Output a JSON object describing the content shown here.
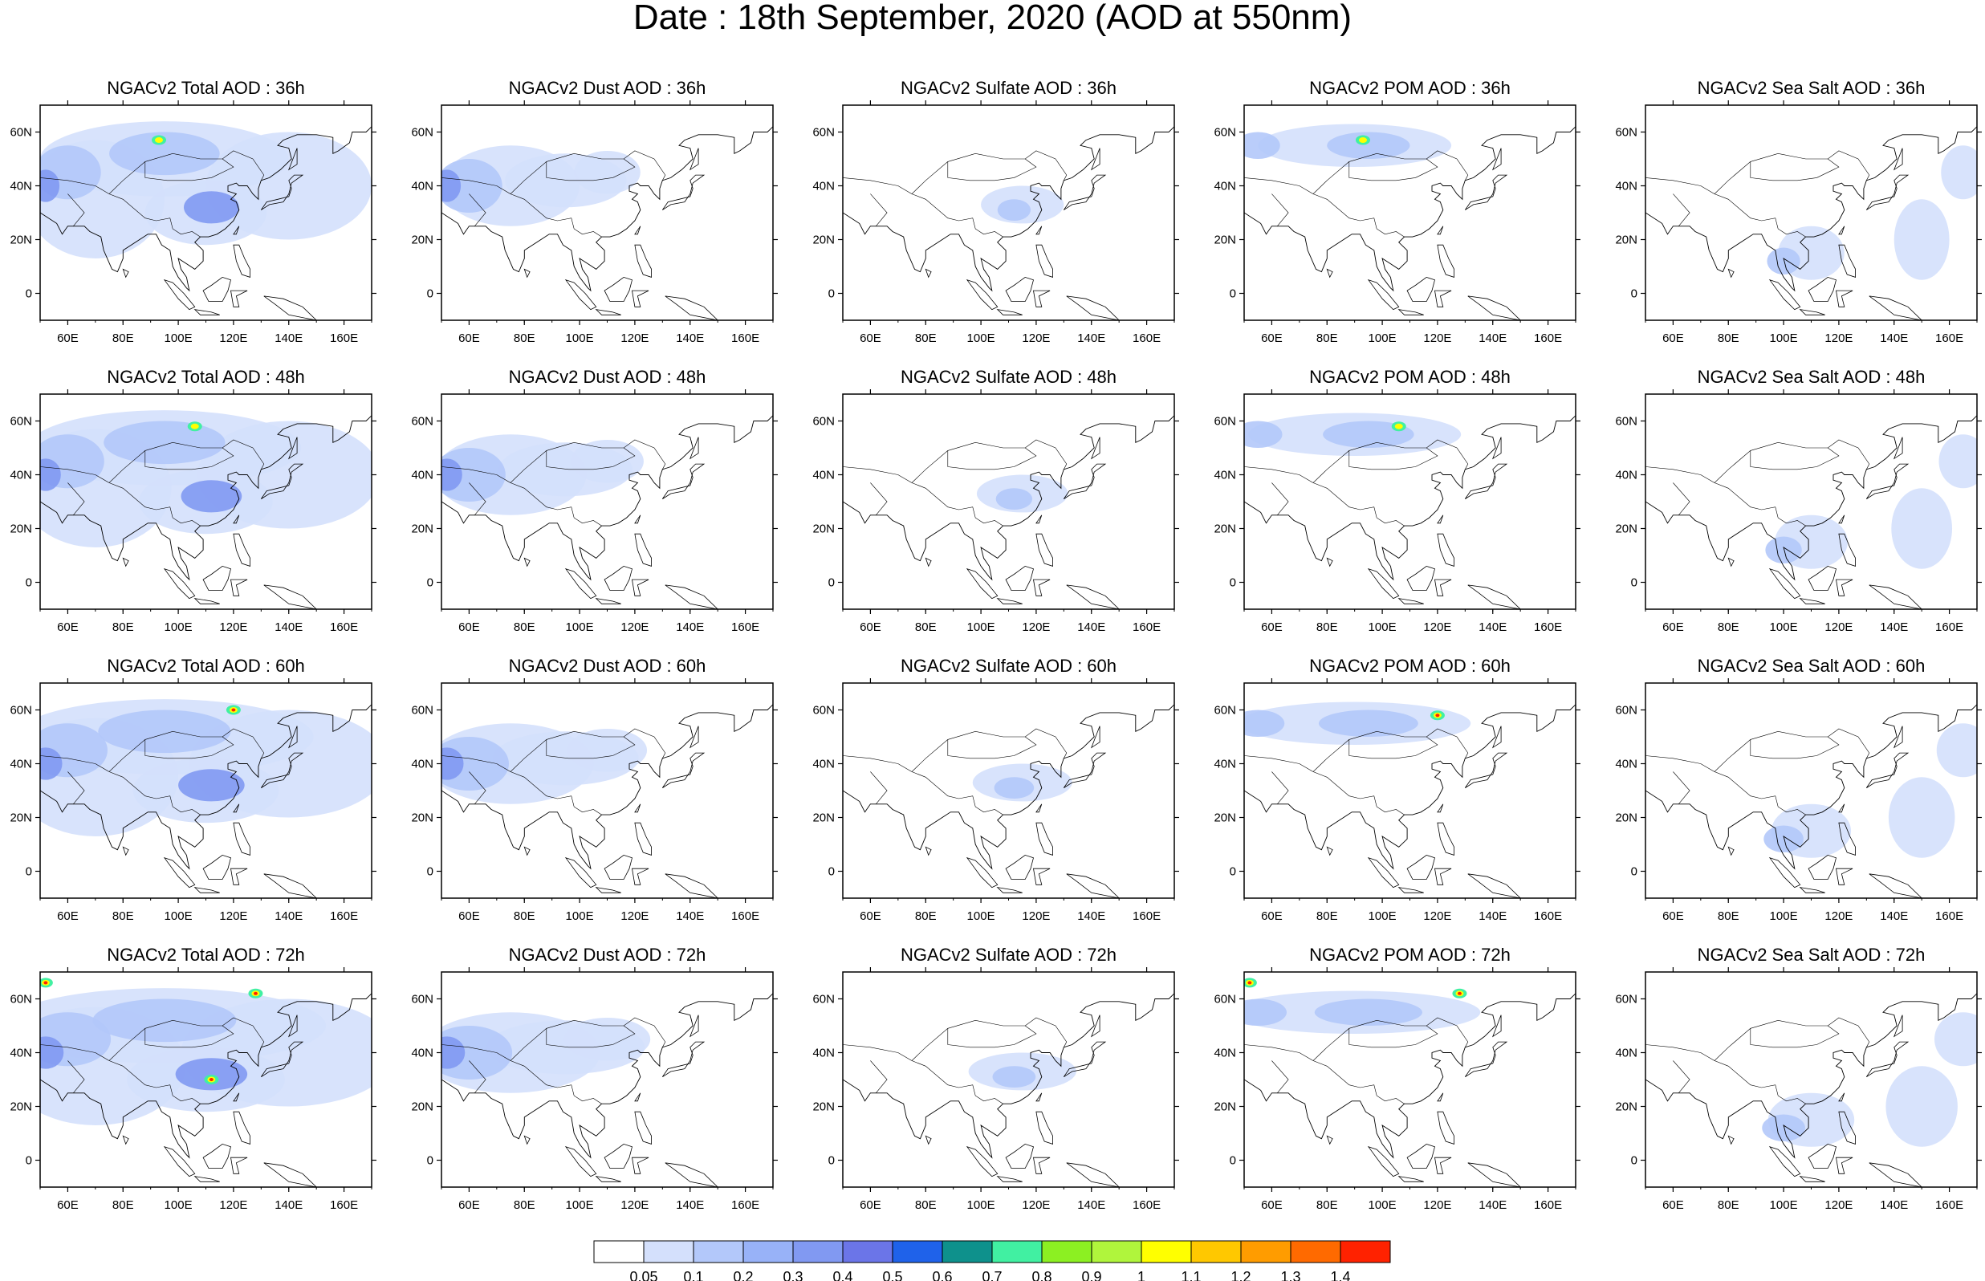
{
  "figure": {
    "title": "Date : 18th September, 2020 (AOD at 550nm)"
  },
  "map_axes": {
    "lon_range": [
      50,
      170
    ],
    "lat_range": [
      -10,
      70
    ],
    "x_ticks": [
      "60E",
      "80E",
      "100E",
      "120E",
      "140E",
      "160E"
    ],
    "x_tick_values": [
      60,
      80,
      100,
      120,
      140,
      160
    ],
    "y_ticks": [
      "60N",
      "40N",
      "20N",
      "0"
    ],
    "y_tick_values": [
      60,
      40,
      20,
      0
    ]
  },
  "panels": [
    {
      "title": "NGACv2 Total AOD : 36h",
      "species": "total",
      "hour": 36
    },
    {
      "title": "NGACv2 Dust AOD : 36h",
      "species": "dust",
      "hour": 36
    },
    {
      "title": "NGACv2 Sulfate AOD : 36h",
      "species": "sulfate",
      "hour": 36
    },
    {
      "title": "NGACv2 POM AOD : 36h",
      "species": "pom",
      "hour": 36
    },
    {
      "title": "NGACv2 Sea Salt AOD : 36h",
      "species": "seasalt",
      "hour": 36
    },
    {
      "title": "NGACv2 Total AOD : 48h",
      "species": "total",
      "hour": 48
    },
    {
      "title": "NGACv2 Dust AOD : 48h",
      "species": "dust",
      "hour": 48
    },
    {
      "title": "NGACv2 Sulfate AOD : 48h",
      "species": "sulfate",
      "hour": 48
    },
    {
      "title": "NGACv2 POM AOD : 48h",
      "species": "pom",
      "hour": 48
    },
    {
      "title": "NGACv2 Sea Salt AOD : 48h",
      "species": "seasalt",
      "hour": 48
    },
    {
      "title": "NGACv2 Total AOD : 60h",
      "species": "total",
      "hour": 60
    },
    {
      "title": "NGACv2 Dust AOD : 60h",
      "species": "dust",
      "hour": 60
    },
    {
      "title": "NGACv2 Sulfate AOD : 60h",
      "species": "sulfate",
      "hour": 60
    },
    {
      "title": "NGACv2 POM AOD : 60h",
      "species": "pom",
      "hour": 60
    },
    {
      "title": "NGACv2 Sea Salt AOD : 60h",
      "species": "seasalt",
      "hour": 60
    },
    {
      "title": "NGACv2 Total AOD : 72h",
      "species": "total",
      "hour": 72
    },
    {
      "title": "NGACv2 Dust AOD : 72h",
      "species": "dust",
      "hour": 72
    },
    {
      "title": "NGACv2 Sulfate AOD : 72h",
      "species": "sulfate",
      "hour": 72
    },
    {
      "title": "NGACv2 POM AOD : 72h",
      "species": "pom",
      "hour": 72
    },
    {
      "title": "NGACv2 Sea Salt  AOD : 72h",
      "species": "seasalt",
      "hour": 72
    }
  ],
  "colorbar": {
    "labels": [
      "0.05",
      "0.1",
      "0.2",
      "0.3",
      "0.4",
      "0.5",
      "0.6",
      "0.7",
      "0.8",
      "0.9",
      "1",
      "1.1",
      "1.2",
      "1.3",
      "1.4"
    ],
    "colors": [
      "#ffffff",
      "#d4e0fc",
      "#b3c8fa",
      "#98b2f8",
      "#8199f2",
      "#6b75e8",
      "#1f62ea",
      "#0e918c",
      "#41f0a2",
      "#8cf022",
      "#b0f53c",
      "#ffff00",
      "#ffc800",
      "#ff9c00",
      "#ff6a00",
      "#ff2200"
    ]
  },
  "species_colors": {
    "light": "#d4e0fc",
    "medium": "#b3c8fa",
    "strong": "#8199f2",
    "peak_green": "#41f0a2",
    "peak_yellow": "#ffff00",
    "peak_red": "#ff2200"
  }
}
